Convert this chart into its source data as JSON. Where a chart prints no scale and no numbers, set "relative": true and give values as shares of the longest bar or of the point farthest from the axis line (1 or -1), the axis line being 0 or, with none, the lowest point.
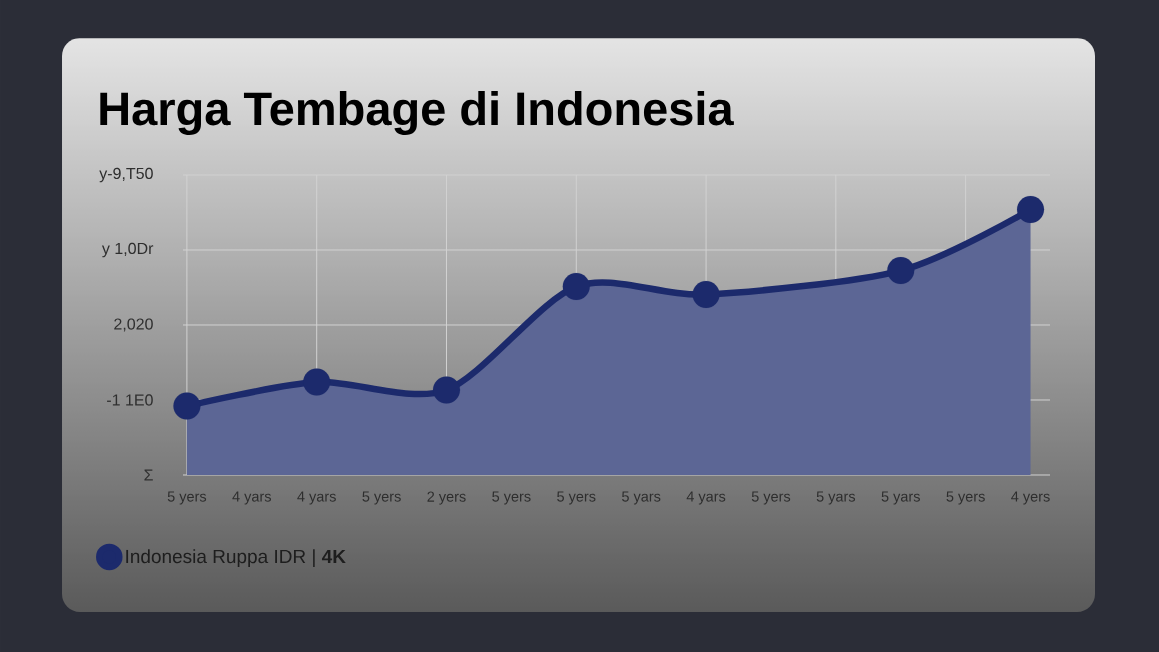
{
  "chart_data": {
    "type": "area",
    "title": "Harga Tembage di Indonesia",
    "categories": [
      "5 yers",
      "4 yars",
      "4 yars",
      "5 yers",
      "2 yers",
      "5 yers",
      "5 yers",
      "5 yars",
      "4 yars",
      "5 yers",
      "5 yars",
      "5 yars",
      "5 yers",
      "4 yers"
    ],
    "series": [
      {
        "name": "Indonesia Ruppa IDR | **4K**",
        "color": "#1c2a6c",
        "values": [
          0.26,
          null,
          0.35,
          null,
          0.32,
          null,
          0.71,
          null,
          0.68,
          null,
          null,
          0.77,
          null,
          1
        ]
      }
    ],
    "relative": true,
    "annotations": [
      "y-9,T50",
      "y 1,0Dr",
      "2,020",
      "-1 1E0",
      "Σ"
    ],
    "grid": true,
    "legend": "bottom left",
    "marker": "circle"
  }
}
